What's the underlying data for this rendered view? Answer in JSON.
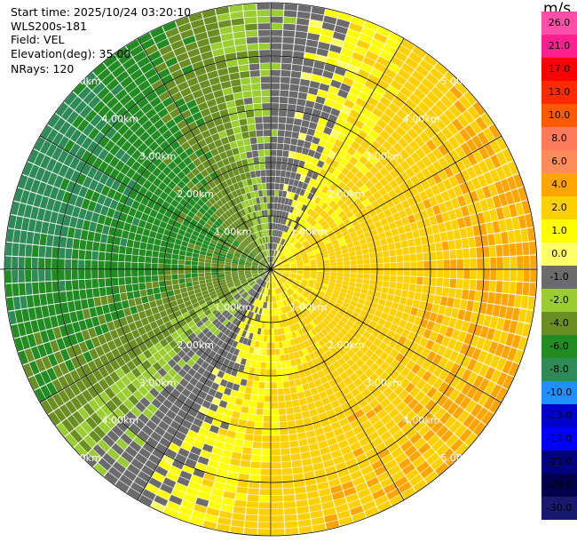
{
  "info": {
    "start_time": "Start time: 2025/10/24 03:20:10",
    "instrument": "WLS200s-181",
    "field": "Field: VEL",
    "elevation": "Elevation(deg): 35.00",
    "nrays": "NRays: 120"
  },
  "chart_data": {
    "type": "heatmap",
    "projection": "polar-ppi",
    "nrays": 120,
    "range_max_km": 5.0,
    "range_rings_km": [
      1.0,
      2.0,
      3.0,
      4.0,
      5.0
    ],
    "ring_labels": [
      "1.00km",
      "2.00km",
      "3.00km",
      "4.00km",
      "5.00km"
    ],
    "spoke_step_deg": 30,
    "colorbar": {
      "unit": "m/s",
      "ticks": [
        "26.0",
        "21.0",
        "17.0",
        "13.0",
        "10.0",
        "8.0",
        "6.0",
        "4.0",
        "2.0",
        "1.0",
        "0.0",
        "-1.0",
        "-2.0",
        "-4.0",
        "-6.0",
        "-8.0",
        "-10.0",
        "-13.0",
        "-17.0",
        "-21.0",
        "-26.0",
        "-30.0"
      ],
      "colors": [
        "#ff4fa8",
        "#ff1f8f",
        "#ff0000",
        "#ff2a00",
        "#ff5a00",
        "#ff7a5a",
        "#ff8c5a",
        "#ffa500",
        "#ffd000",
        "#ffff00",
        "#ffff66",
        "#6b6b6b",
        "#9acd32",
        "#6b8e23",
        "#228b22",
        "#2e8b57",
        "#1e90ff",
        "#0000cd",
        "#0000ff",
        "#000080",
        "#00004d",
        "#191970"
      ]
    }
  }
}
